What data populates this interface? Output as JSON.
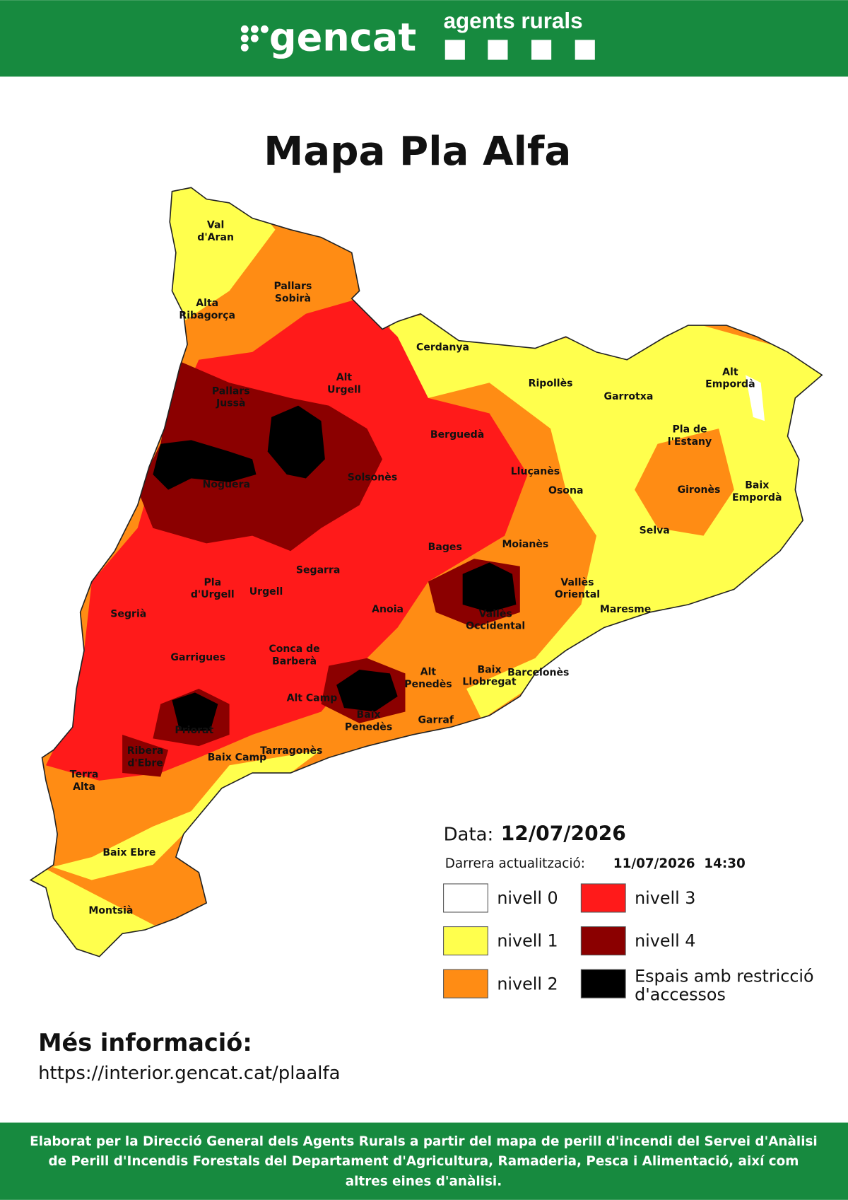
{
  "header": {
    "logo": "gencat",
    "unit": "agents rurals"
  },
  "title": "Mapa Pla Alfa",
  "regions": [
    [
      "Val",
      "d'Aran"
    ],
    [
      "Pallars",
      "Sobirà"
    ],
    [
      "Alta",
      "Ribagorça"
    ],
    [
      "Cerdanya"
    ],
    [
      "Alt",
      "Urgell"
    ],
    [
      "Pallars",
      "Jussà"
    ],
    [
      "Ripollès"
    ],
    [
      "Alt",
      "Empordà"
    ],
    [
      "Garrotxa"
    ],
    [
      "Pla de",
      "l'Estany"
    ],
    [
      "Berguedà"
    ],
    [
      "Solsonès"
    ],
    [
      "Lluçanès"
    ],
    [
      "Osona"
    ],
    [
      "Gironès"
    ],
    [
      "Baix",
      "Empordà"
    ],
    [
      "Noguera"
    ],
    [
      "Selva"
    ],
    [
      "Bages"
    ],
    [
      "Moianès"
    ],
    [
      "Segarra"
    ],
    [
      "Pla",
      "d'Urgell"
    ],
    [
      "Urgell"
    ],
    [
      "Vallès",
      "Oriental"
    ],
    [
      "Segrià"
    ],
    [
      "Anoia"
    ],
    [
      "Vallès",
      "Occidental"
    ],
    [
      "Maresme"
    ],
    [
      "Garrigues"
    ],
    [
      "Conca de",
      "Barberà"
    ],
    [
      "Alt",
      "Penedès"
    ],
    [
      "Baix",
      "Llobregat"
    ],
    [
      "Barcelonès"
    ],
    [
      "Alt Camp"
    ],
    [
      "Baix",
      "Penedès"
    ],
    [
      "Garraf"
    ],
    [
      "Priorat"
    ],
    [
      "Ribera",
      "d'Ebre"
    ],
    [
      "Baix Camp"
    ],
    [
      "Tarragonès"
    ],
    [
      "Terra",
      "Alta"
    ],
    [
      "Baix Ebre"
    ],
    [
      "Montsià"
    ]
  ],
  "date": {
    "label": "Data:",
    "value": "12/07/2026"
  },
  "update": {
    "label": "Darrera actualització:",
    "value": "11/07/2026  14:30"
  },
  "legend": [
    {
      "label": "nivell 0",
      "color": "#ffffff"
    },
    {
      "label": "nivell 1",
      "color": "#ffff4d"
    },
    {
      "label": "nivell 2",
      "color": "#ff8c14"
    },
    {
      "label": "nivell 3",
      "color": "#ff1a1a"
    },
    {
      "label": "nivell 4",
      "color": "#8b0000"
    },
    {
      "label": "Espais amb restricció d'accessos",
      "color": "#000000"
    }
  ],
  "more_info": {
    "heading": "Més informació:",
    "url": "https://interior.gencat.cat/plaalfa"
  },
  "footer": "Elaborat per la Direcció General dels Agents Rurals a partir del mapa de perill d'incendi del Servei d'Anàlisi de Perill d'Incendis Forestals del Departament d'Agricultura, Ramaderia, Pesca i Alimentació, així com altres eines d'anàlisi."
}
